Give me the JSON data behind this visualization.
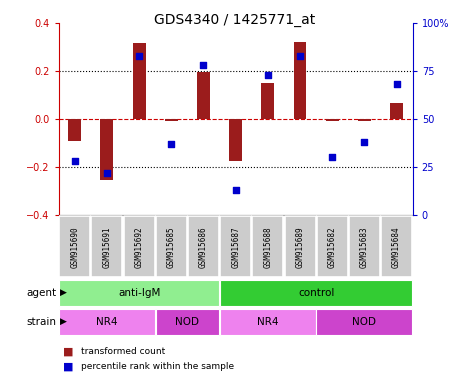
{
  "title": "GDS4340 / 1425771_at",
  "samples": [
    "GSM915690",
    "GSM915691",
    "GSM915692",
    "GSM915685",
    "GSM915686",
    "GSM915687",
    "GSM915688",
    "GSM915689",
    "GSM915682",
    "GSM915683",
    "GSM915684"
  ],
  "bar_values": [
    -0.09,
    -0.255,
    0.315,
    -0.01,
    0.195,
    -0.175,
    0.15,
    0.32,
    -0.01,
    -0.01,
    0.065
  ],
  "dot_values": [
    28,
    22,
    83,
    37,
    78,
    13,
    73,
    83,
    30,
    38,
    68
  ],
  "bar_color": "#9B1C1C",
  "dot_color": "#0000CC",
  "ylim_left": [
    -0.4,
    0.4
  ],
  "ylim_right": [
    0,
    100
  ],
  "agent_labels": [
    {
      "label": "anti-IgM",
      "start": 0,
      "end": 5,
      "color": "#90EE90"
    },
    {
      "label": "control",
      "start": 5,
      "end": 11,
      "color": "#33CC33"
    }
  ],
  "strain_labels": [
    {
      "label": "NR4",
      "start": 0,
      "end": 3,
      "color": "#EE82EE"
    },
    {
      "label": "NOD",
      "start": 3,
      "end": 5,
      "color": "#CC44CC"
    },
    {
      "label": "NR4",
      "start": 5,
      "end": 8,
      "color": "#EE82EE"
    },
    {
      "label": "NOD",
      "start": 8,
      "end": 11,
      "color": "#CC44CC"
    }
  ],
  "legend_bar_label": "transformed count",
  "legend_dot_label": "percentile rank within the sample",
  "agent_row_label": "agent",
  "strain_row_label": "strain",
  "tick_color_left": "#CC0000",
  "tick_color_right": "#0000CC",
  "bg_color": "#FFFFFF",
  "light_green": "#90EE90",
  "dark_green": "#33CC33",
  "light_purple": "#EE82EE",
  "dark_purple": "#CC44CC",
  "gray_box": "#CCCCCC"
}
